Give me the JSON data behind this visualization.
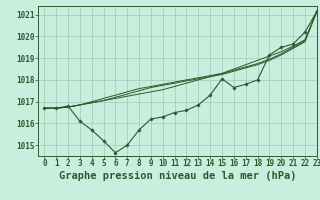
{
  "title": "Graphe pression niveau de la mer (hPa)",
  "bg_color": "#c8eedd",
  "grid_color": "#99ccbb",
  "line_color": "#2d5a2d",
  "xlim": [
    -0.5,
    23
  ],
  "ylim": [
    1014.5,
    1021.4
  ],
  "yticks": [
    1015,
    1016,
    1017,
    1018,
    1019,
    1020,
    1021
  ],
  "xticks": [
    0,
    1,
    2,
    3,
    4,
    5,
    6,
    7,
    8,
    9,
    10,
    11,
    12,
    13,
    14,
    15,
    16,
    17,
    18,
    19,
    20,
    21,
    22,
    23
  ],
  "series_marked": [
    1016.7,
    1016.7,
    1016.8,
    1016.1,
    1015.7,
    1015.2,
    1014.65,
    1015.0,
    1015.7,
    1016.2,
    1016.3,
    1016.5,
    1016.6,
    1016.85,
    1017.3,
    1018.05,
    1017.65,
    1017.8,
    1018.0,
    1019.15,
    1019.5,
    1019.65,
    1020.2,
    1021.15
  ],
  "series_smooth1": [
    1016.7,
    1016.7,
    1016.75,
    1016.85,
    1016.95,
    1017.05,
    1017.15,
    1017.25,
    1017.35,
    1017.45,
    1017.55,
    1017.7,
    1017.85,
    1018.0,
    1018.15,
    1018.3,
    1018.5,
    1018.7,
    1018.9,
    1019.1,
    1019.3,
    1019.55,
    1019.85,
    1021.15
  ],
  "series_smooth2": [
    1016.7,
    1016.7,
    1016.75,
    1016.85,
    1016.95,
    1017.05,
    1017.2,
    1017.35,
    1017.5,
    1017.65,
    1017.75,
    1017.85,
    1017.95,
    1018.05,
    1018.15,
    1018.25,
    1018.4,
    1018.55,
    1018.7,
    1018.9,
    1019.15,
    1019.45,
    1019.75,
    1021.15
  ],
  "series_smooth3": [
    1016.7,
    1016.7,
    1016.75,
    1016.85,
    1017.0,
    1017.15,
    1017.3,
    1017.45,
    1017.6,
    1017.7,
    1017.8,
    1017.9,
    1018.0,
    1018.1,
    1018.2,
    1018.3,
    1018.45,
    1018.6,
    1018.75,
    1018.95,
    1019.2,
    1019.5,
    1019.8,
    1021.15
  ],
  "title_fontsize": 7.5,
  "tick_fontsize": 5.5
}
